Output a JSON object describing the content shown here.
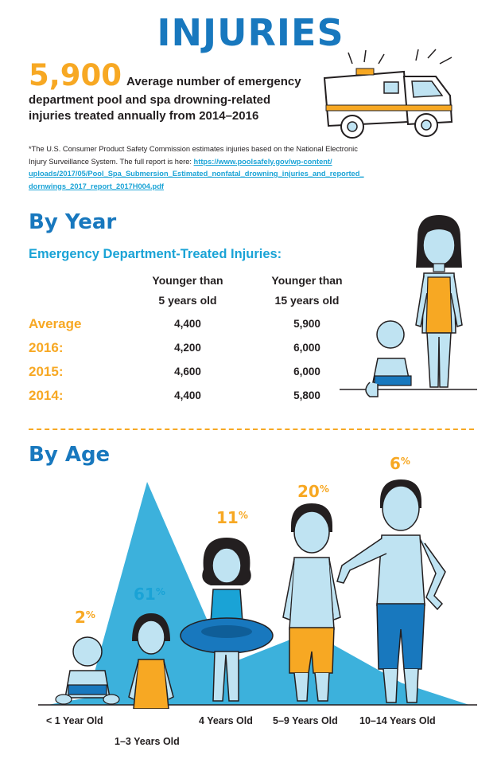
{
  "title": "INJURIES",
  "summary": {
    "number": "5,900",
    "lines": [
      "Average number of emergency",
      "department pool and spa drowning-related",
      "injuries treated annually from 2014–2016"
    ]
  },
  "footnote": {
    "text_lines": [
      "*The U.S. Consumer Product Safety Commission estimates injuries based on the National Electronic",
      "Injury Surveillance System. The full report is here: "
    ],
    "link_lines": [
      "https://www.poolsafely.gov/wp-content/",
      "uploads/2017/05/Pool_Spa_Submersion_Estimated_nonfatal_drowning_injuries_and_reported_",
      "dornwings_2017_report_2017H004.pdf"
    ]
  },
  "by_year": {
    "heading": "By Year",
    "subheading": "Emergency Department-Treated Injuries:",
    "columns": [
      [
        "Younger than",
        "5 years old"
      ],
      [
        "Younger than",
        "15 years old"
      ]
    ],
    "rows": [
      {
        "label": "Average",
        "values": [
          "4,400",
          "5,900"
        ]
      },
      {
        "label": "2016:",
        "values": [
          "4,200",
          "6,000"
        ]
      },
      {
        "label": "2015:",
        "values": [
          "4,600",
          "6,000"
        ]
      },
      {
        "label": "2014:",
        "values": [
          "4,400",
          "5,800"
        ]
      }
    ]
  },
  "by_age": {
    "heading": "By Age",
    "groups": [
      {
        "label": "< 1 Year Old",
        "percent": "2",
        "symbol": "%"
      },
      {
        "label": "1–3 Years Old",
        "percent": "61",
        "symbol": "%"
      },
      {
        "label": "4 Years Old",
        "percent": "11",
        "symbol": "%"
      },
      {
        "label": "5–9 Years Old",
        "percent": "20",
        "symbol": "%"
      },
      {
        "label": "10–14 Years Old",
        "percent": "6",
        "symbol": "%"
      }
    ]
  },
  "chart_data": {
    "type": "area",
    "categories": [
      "< 1 Year Old",
      "1–3 Years Old",
      "4 Years Old",
      "5–9 Years Old",
      "10–14 Years Old"
    ],
    "values": [
      2,
      61,
      11,
      20,
      6
    ],
    "ylim": [
      0,
      61
    ],
    "grid": false
  },
  "colors": {
    "brand_blue": "#1878be",
    "light_blue": "#1aa3d6",
    "orange": "#f7a823",
    "skin": "#bfe3f2"
  }
}
